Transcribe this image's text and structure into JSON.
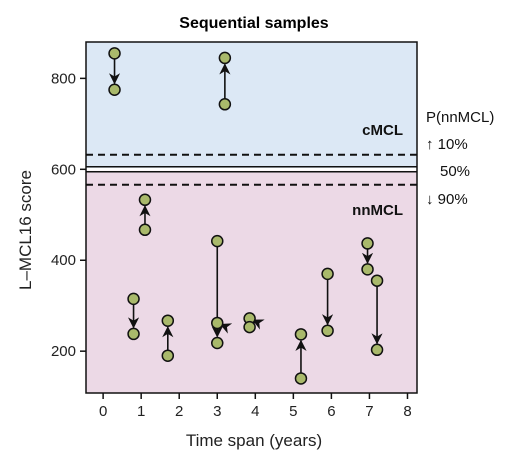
{
  "chart_data": {
    "type": "scatter",
    "title": "Sequential samples",
    "xlabel": "Time span (years)",
    "ylabel": "L–MCL16 score",
    "xlim": [
      -0.45,
      8.25
    ],
    "ylim": [
      108,
      880
    ],
    "xticks": [
      0,
      1,
      2,
      3,
      4,
      5,
      6,
      7,
      8
    ],
    "yticks": [
      200,
      400,
      600,
      800
    ],
    "regions": [
      {
        "name": "cMCL",
        "from": 600,
        "to": 880,
        "color": "#dce8f5"
      },
      {
        "name": "nnMCL",
        "from": 108,
        "to": 600,
        "color": "#ecd9e6"
      }
    ],
    "thresholds": [
      {
        "value": 632,
        "style": "dashed"
      },
      {
        "value": 600,
        "style": "solid"
      },
      {
        "value": 566,
        "style": "dashed"
      }
    ],
    "side_labels": {
      "header": "P(nnMCL)",
      "upper": "↑ 10%",
      "middle": "50%",
      "lower": "↓ 90%"
    },
    "point_color": "#a9b96b",
    "pairs": [
      {
        "from": [
          0.3,
          855
        ],
        "to": [
          0.3,
          775
        ]
      },
      {
        "from": [
          3.2,
          743
        ],
        "to": [
          3.2,
          845
        ]
      },
      {
        "from": [
          1.1,
          467
        ],
        "to": [
          1.1,
          533
        ]
      },
      {
        "from": [
          0.8,
          315
        ],
        "to": [
          0.8,
          238
        ]
      },
      {
        "from": [
          1.7,
          190
        ],
        "to": [
          1.7,
          267
        ]
      },
      {
        "from": [
          3.0,
          442
        ],
        "to": [
          3.0,
          218
        ]
      },
      {
        "from": [
          3.0,
          262
        ],
        "to": [
          3.25,
          253
        ]
      },
      {
        "from": [
          3.85,
          272
        ],
        "to": [
          4.1,
          262
        ]
      },
      {
        "from": [
          3.85,
          253
        ],
        "to": [
          4.1,
          275
        ]
      },
      {
        "from": [
          5.2,
          140
        ],
        "to": [
          5.2,
          237
        ]
      },
      {
        "from": [
          5.9,
          370
        ],
        "to": [
          5.9,
          245
        ]
      },
      {
        "from": [
          6.95,
          437
        ],
        "to": [
          6.95,
          380
        ]
      },
      {
        "from": [
          7.2,
          355
        ],
        "to": [
          7.2,
          203
        ]
      }
    ],
    "points": [
      [
        0.3,
        855
      ],
      [
        0.3,
        775
      ],
      [
        3.2,
        743
      ],
      [
        3.2,
        845
      ],
      [
        1.1,
        467
      ],
      [
        1.1,
        533
      ],
      [
        0.8,
        315
      ],
      [
        0.8,
        238
      ],
      [
        1.7,
        190
      ],
      [
        1.7,
        267
      ],
      [
        3.0,
        442
      ],
      [
        3.0,
        262
      ],
      [
        3.0,
        218
      ],
      [
        3.85,
        272
      ],
      [
        3.85,
        253
      ],
      [
        5.2,
        140
      ],
      [
        5.2,
        237
      ],
      [
        5.9,
        370
      ],
      [
        5.9,
        245
      ],
      [
        6.95,
        437
      ],
      [
        6.95,
        380
      ],
      [
        7.2,
        355
      ],
      [
        7.2,
        203
      ]
    ]
  }
}
